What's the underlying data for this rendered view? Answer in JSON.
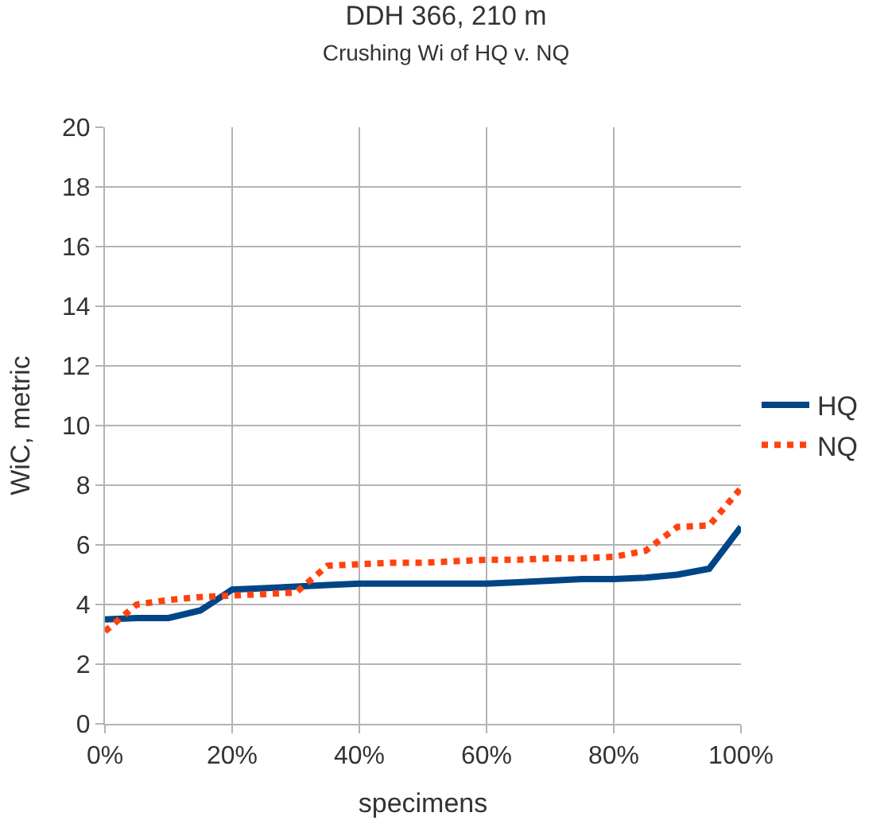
{
  "chart_data": {
    "type": "line",
    "title": "DDH 366, 210 m",
    "subtitle": "Crushing Wi of HQ v. NQ",
    "xlabel": "specimens",
    "ylabel": "WiC, metric",
    "x": [
      0,
      5,
      10,
      15,
      20,
      25,
      30,
      35,
      40,
      45,
      50,
      55,
      60,
      65,
      70,
      75,
      80,
      85,
      90,
      95,
      100
    ],
    "series": [
      {
        "name": "HQ",
        "color": "#004586",
        "line_style": "solid",
        "values": [
          3.5,
          3.55,
          3.55,
          3.8,
          4.5,
          4.55,
          4.6,
          4.65,
          4.7,
          4.7,
          4.7,
          4.7,
          4.7,
          4.75,
          4.8,
          4.85,
          4.85,
          4.9,
          5.0,
          5.2,
          6.6
        ]
      },
      {
        "name": "NQ",
        "color": "#ff420e",
        "line_style": "dotted",
        "values": [
          3.1,
          4.0,
          4.15,
          4.25,
          4.3,
          4.35,
          4.4,
          5.3,
          5.35,
          5.4,
          5.4,
          5.45,
          5.5,
          5.5,
          5.55,
          5.55,
          5.6,
          5.8,
          6.6,
          6.65,
          7.9
        ]
      }
    ],
    "xlim": [
      0,
      100
    ],
    "xticks": [
      {
        "value": 0,
        "label": "0%"
      },
      {
        "value": 20,
        "label": "20%"
      },
      {
        "value": 40,
        "label": "40%"
      },
      {
        "value": 60,
        "label": "60%"
      },
      {
        "value": 80,
        "label": "80%"
      },
      {
        "value": 100,
        "label": "100%"
      }
    ],
    "ylim": [
      0,
      20
    ],
    "yticks": [
      0,
      2,
      4,
      6,
      8,
      10,
      12,
      14,
      16,
      18,
      20
    ],
    "grid": true,
    "legend": "right",
    "marker": "none"
  }
}
